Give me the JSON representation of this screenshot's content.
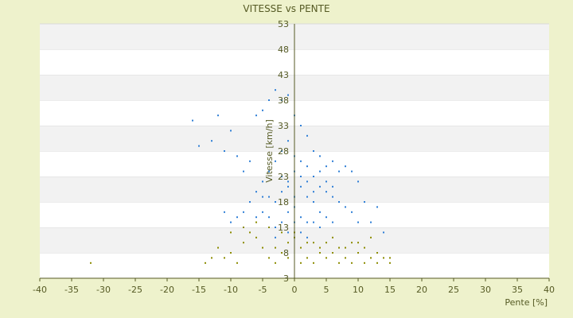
{
  "chart_data": {
    "type": "scatter",
    "title": "VITESSE vs PENTE",
    "xlabel": "Pente [%]",
    "ylabel": "Vitesse [km/h]",
    "xlim": [
      -40,
      40
    ],
    "ylim": [
      3,
      53
    ],
    "x_ticks": [
      -40,
      -35,
      -30,
      -25,
      -20,
      -15,
      -10,
      -5,
      0,
      5,
      10,
      15,
      20,
      25,
      30,
      35,
      40
    ],
    "y_ticks": [
      3,
      8,
      13,
      18,
      23,
      28,
      33,
      38,
      43,
      48,
      53
    ],
    "grid": "horizontal bands",
    "legend": "none",
    "colors": {
      "background": "#eef2cc",
      "plot_band_light": "#ffffff",
      "plot_band_dark": "#f2f2f2",
      "series_blue": "#2f7fd6",
      "series_olive": "#8c8c00",
      "axis": "#555a24"
    },
    "series": [
      {
        "color": "#2f7fd6",
        "points": [
          [
            -16,
            34
          ],
          [
            -15,
            29
          ],
          [
            -13,
            30
          ],
          [
            -12,
            35
          ],
          [
            -11,
            28
          ],
          [
            -10,
            32
          ],
          [
            -9,
            27
          ],
          [
            -8,
            24
          ],
          [
            -7,
            26
          ],
          [
            -6,
            35
          ],
          [
            -5,
            36
          ],
          [
            -4,
            38
          ],
          [
            -3,
            40
          ],
          [
            -2,
            38
          ],
          [
            -1,
            39
          ],
          [
            0,
            35
          ],
          [
            1,
            33
          ],
          [
            2,
            31
          ],
          [
            3,
            28
          ],
          [
            4,
            27
          ],
          [
            5,
            25
          ],
          [
            6,
            26
          ],
          [
            7,
            24
          ],
          [
            8,
            25
          ],
          [
            9,
            24
          ],
          [
            10,
            22
          ],
          [
            11,
            18
          ],
          [
            12,
            14
          ],
          [
            13,
            17
          ],
          [
            14,
            12
          ],
          [
            -6,
            20
          ],
          [
            -5,
            22
          ],
          [
            -4,
            24
          ],
          [
            -3,
            26
          ],
          [
            -2,
            28
          ],
          [
            -1,
            30
          ],
          [
            0,
            27
          ],
          [
            1,
            26
          ],
          [
            2,
            25
          ],
          [
            3,
            23
          ],
          [
            4,
            21
          ],
          [
            5,
            20
          ],
          [
            6,
            19
          ],
          [
            7,
            18
          ],
          [
            8,
            17
          ],
          [
            9,
            16
          ],
          [
            10,
            14
          ],
          [
            -7,
            18
          ],
          [
            -8,
            16
          ],
          [
            -9,
            15
          ],
          [
            -10,
            14
          ],
          [
            -11,
            16
          ],
          [
            -3,
            18
          ],
          [
            -2,
            20
          ],
          [
            -1,
            22
          ],
          [
            0,
            24
          ],
          [
            1,
            21
          ],
          [
            2,
            19
          ],
          [
            3,
            18
          ],
          [
            4,
            16
          ],
          [
            5,
            15
          ],
          [
            6,
            14
          ],
          [
            -1,
            16
          ],
          [
            0,
            17
          ],
          [
            1,
            15
          ],
          [
            2,
            14
          ],
          [
            -2,
            14
          ],
          [
            -3,
            13
          ],
          [
            -4,
            15
          ],
          [
            -5,
            16
          ],
          [
            -6,
            15
          ],
          [
            3,
            14
          ],
          [
            4,
            13
          ],
          [
            0,
            19
          ],
          [
            -1,
            21
          ],
          [
            1,
            23
          ],
          [
            2,
            22
          ],
          [
            -2,
            23
          ],
          [
            -4,
            19
          ],
          [
            -5,
            19
          ],
          [
            3,
            20
          ],
          [
            4,
            24
          ],
          [
            5,
            22
          ],
          [
            6,
            21
          ],
          [
            0,
            14
          ],
          [
            -1,
            12
          ],
          [
            1,
            12
          ],
          [
            2,
            11
          ],
          [
            -3,
            11
          ]
        ]
      },
      {
        "color": "#8c8c00",
        "points": [
          [
            -32,
            6
          ],
          [
            -14,
            6
          ],
          [
            -13,
            7
          ],
          [
            -12,
            9
          ],
          [
            -11,
            7
          ],
          [
            -10,
            8
          ],
          [
            -9,
            6
          ],
          [
            -8,
            10
          ],
          [
            -7,
            12
          ],
          [
            -6,
            11
          ],
          [
            -5,
            9
          ],
          [
            -4,
            7
          ],
          [
            -3,
            6
          ],
          [
            -2,
            8
          ],
          [
            -1,
            10
          ],
          [
            0,
            12
          ],
          [
            1,
            9
          ],
          [
            2,
            7
          ],
          [
            3,
            6
          ],
          [
            4,
            8
          ],
          [
            5,
            10
          ],
          [
            6,
            11
          ],
          [
            7,
            9
          ],
          [
            8,
            7
          ],
          [
            9,
            6
          ],
          [
            10,
            8
          ],
          [
            11,
            9
          ],
          [
            12,
            7
          ],
          [
            13,
            6
          ],
          [
            14,
            7
          ],
          [
            15,
            6
          ],
          [
            -10,
            12
          ],
          [
            -8,
            13
          ],
          [
            -6,
            14
          ],
          [
            -4,
            13
          ],
          [
            -2,
            12
          ],
          [
            0,
            11
          ],
          [
            2,
            10
          ],
          [
            4,
            9
          ],
          [
            6,
            8
          ],
          [
            8,
            9
          ],
          [
            10,
            10
          ],
          [
            12,
            11
          ],
          [
            -3,
            9
          ],
          [
            -1,
            7
          ],
          [
            1,
            6
          ],
          [
            3,
            10
          ],
          [
            5,
            7
          ],
          [
            7,
            6
          ],
          [
            9,
            10
          ],
          [
            11,
            6
          ],
          [
            13,
            8
          ],
          [
            15,
            7
          ]
        ]
      }
    ]
  }
}
